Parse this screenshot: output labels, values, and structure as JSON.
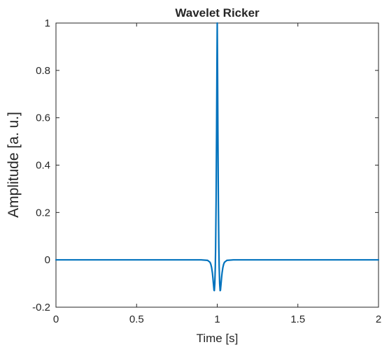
{
  "chart_data": {
    "type": "line",
    "title": "Wavelet Ricker",
    "xlabel": "Time [s]",
    "ylabel": "Amplitude [a. u.]",
    "xlim": [
      0,
      2
    ],
    "ylim": [
      -0.2,
      1
    ],
    "xticks": [
      0,
      0.5,
      1,
      1.5,
      2
    ],
    "xtick_labels": [
      "0",
      "0.5",
      "1",
      "1.5",
      "2"
    ],
    "yticks": [
      -0.2,
      0,
      0.2,
      0.4,
      0.6,
      0.8,
      1
    ],
    "ytick_labels": [
      "-0.2",
      "0",
      "0.2",
      "0.4",
      "0.6",
      "0.8",
      "1"
    ],
    "grid": false,
    "series": [
      {
        "color": "#0072BD",
        "x": [
          0,
          0.9,
          0.94,
          0.955,
          0.96,
          0.965,
          0.97,
          0.973,
          0.976,
          0.979,
          0.98,
          0.982,
          0.985,
          0.988,
          0.99,
          0.993,
          0.996,
          0.998,
          1.0,
          1.002,
          1.004,
          1.007,
          1.01,
          1.012,
          1.015,
          1.018,
          1.02,
          1.021,
          1.024,
          1.027,
          1.03,
          1.035,
          1.04,
          1.045,
          1.06,
          1.1,
          2
        ],
        "y": [
          0,
          0,
          -0.002,
          -0.01,
          -0.018,
          -0.032,
          -0.055,
          -0.075,
          -0.098,
          -0.12,
          -0.128,
          -0.13,
          -0.1,
          -0.03,
          0.05,
          0.25,
          0.55,
          0.8,
          1.0,
          0.8,
          0.55,
          0.25,
          0.05,
          -0.03,
          -0.1,
          -0.13,
          -0.128,
          -0.12,
          -0.098,
          -0.075,
          -0.055,
          -0.032,
          -0.018,
          -0.01,
          -0.002,
          0,
          0
        ]
      }
    ]
  }
}
